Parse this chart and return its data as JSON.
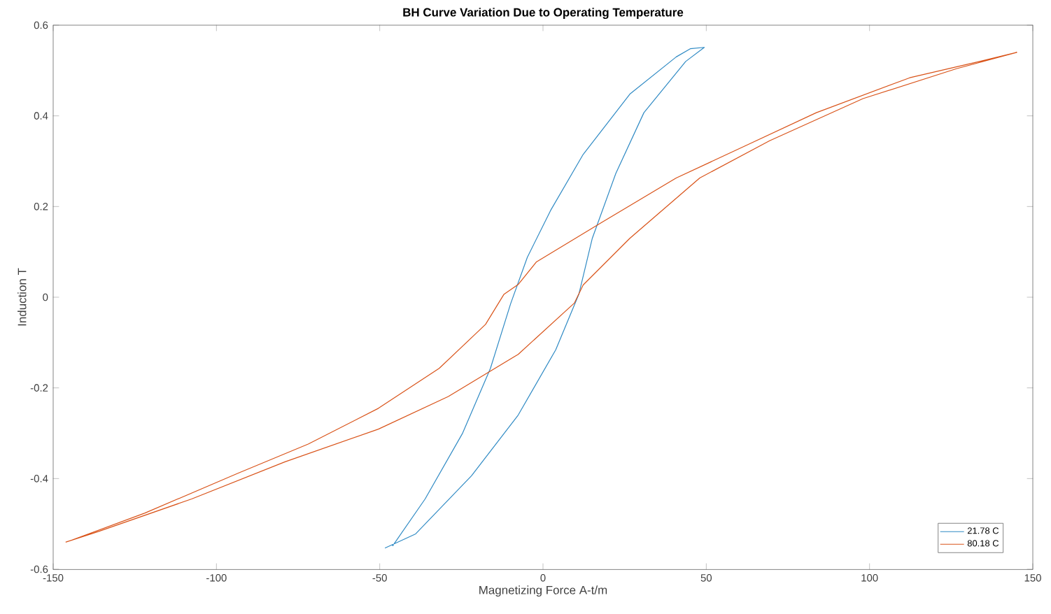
{
  "chart_data": {
    "type": "line",
    "title": "BH Curve Variation Due to Operating Temperature",
    "xlabel": "Magnetizing Force A-t/m",
    "ylabel": "Induction T",
    "xlim": [
      -150,
      150
    ],
    "ylim": [
      -0.6,
      0.6
    ],
    "xticks": [
      -150,
      -100,
      -50,
      0,
      50,
      100,
      150
    ],
    "yticks": [
      -0.6,
      -0.4,
      -0.2,
      0,
      0.2,
      0.4,
      0.6
    ],
    "legend": "bottom right",
    "marker": "none",
    "line_style": "solid",
    "series": [
      {
        "name": "21.78 C",
        "color": "#2f8ac4",
        "x": [
          -48.3,
          -39,
          -21.9,
          -7.6,
          3.9,
          11,
          15.1,
          22.3,
          30.9,
          43.7,
          49.4,
          45.1,
          40.8,
          26.6,
          12.3,
          2.3,
          -4.8,
          -9.9,
          -16.1,
          -24.7,
          -36.1,
          -46
        ],
        "values": [
          -0.553,
          -0.522,
          -0.394,
          -0.26,
          -0.116,
          0.007,
          0.13,
          0.273,
          0.407,
          0.52,
          0.551,
          0.548,
          0.53,
          0.448,
          0.315,
          0.191,
          0.088,
          -0.014,
          -0.157,
          -0.301,
          -0.445,
          -0.548
        ]
      },
      {
        "name": "80.18 C",
        "color": "#d95319",
        "x": [
          -146.1,
          -136.2,
          -107.6,
          -79,
          -50.4,
          -29,
          -7.6,
          9.6,
          12.3,
          26.6,
          48,
          69.4,
          98,
          126.6,
          145.1,
          133.7,
          112.3,
          83.7,
          62.3,
          40.8,
          18,
          -2,
          -7.6,
          -12,
          -17.6,
          -31.8,
          -50.4,
          -71.9,
          -93.3,
          -121.9,
          -144
        ],
        "values": [
          -0.54,
          -0.517,
          -0.445,
          -0.363,
          -0.291,
          -0.219,
          -0.126,
          -0.013,
          0.027,
          0.13,
          0.263,
          0.345,
          0.438,
          0.504,
          0.54,
          0.52,
          0.484,
          0.407,
          0.335,
          0.263,
          0.165,
          0.078,
          0.028,
          0.006,
          -0.06,
          -0.157,
          -0.245,
          -0.324,
          -0.388,
          -0.476,
          -0.535
        ]
      }
    ]
  }
}
